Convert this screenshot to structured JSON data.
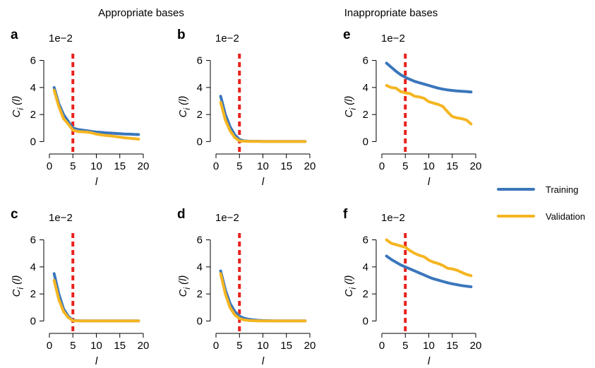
{
  "figure": {
    "group_titles": [
      "Appropriate bases",
      "Inappropriate bases"
    ],
    "colors": {
      "training": "#3a76bb",
      "validation": "#f5b522",
      "threshold": "#e8211d"
    },
    "legend": {
      "placement": "right",
      "entries": [
        "Training",
        "Validation"
      ]
    }
  },
  "chart_data": [
    {
      "panel": "a",
      "type": "line",
      "multiplier": "1e−2",
      "xlabel": "l",
      "ylabel": "C",
      "ylabel_sub": "i",
      "ylabel_arg": "(l)",
      "xlim": [
        0,
        20
      ],
      "ylim": [
        -0.5,
        6.5
      ],
      "xticks": [
        0,
        5,
        10,
        15,
        20
      ],
      "yticks": [
        0,
        2,
        4,
        6
      ],
      "threshold_x": 5,
      "series": [
        {
          "name": "Training",
          "x": [
            1,
            2,
            3,
            4,
            5,
            6,
            7,
            8,
            9,
            10,
            11,
            12,
            13,
            14,
            15,
            16,
            17,
            18,
            19
          ],
          "y": [
            4.0,
            2.8,
            2.0,
            1.5,
            1.0,
            0.9,
            0.85,
            0.8,
            0.75,
            0.7,
            0.68,
            0.65,
            0.63,
            0.6,
            0.58,
            0.56,
            0.55,
            0.53,
            0.52
          ]
        },
        {
          "name": "Validation",
          "x": [
            1,
            2,
            3,
            4,
            5,
            6,
            7,
            8,
            9,
            10,
            11,
            12,
            13,
            14,
            15,
            16,
            17,
            18,
            19
          ],
          "y": [
            3.8,
            2.6,
            1.7,
            1.3,
            0.85,
            0.75,
            0.72,
            0.7,
            0.65,
            0.55,
            0.5,
            0.45,
            0.42,
            0.38,
            0.33,
            0.28,
            0.25,
            0.22,
            0.18
          ]
        }
      ]
    },
    {
      "panel": "b",
      "type": "line",
      "multiplier": "1e−2",
      "xlabel": "l",
      "ylabel": "C",
      "ylabel_sub": "i",
      "ylabel_arg": "(l)",
      "xlim": [
        0,
        20
      ],
      "ylim": [
        -0.5,
        6.5
      ],
      "xticks": [
        0,
        5,
        10,
        15,
        20
      ],
      "yticks": [
        0,
        2,
        4,
        6
      ],
      "threshold_x": 5,
      "series": [
        {
          "name": "Training",
          "x": [
            1,
            2,
            3,
            4,
            5,
            6,
            7,
            8,
            9,
            10,
            11,
            12,
            13,
            14,
            15,
            16,
            17,
            18,
            19
          ],
          "y": [
            3.35,
            2.0,
            1.1,
            0.5,
            0.15,
            0.05,
            0.03,
            0.02,
            0.02,
            0.01,
            0.01,
            0.01,
            0.01,
            0.01,
            0.01,
            0.01,
            0.01,
            0.01,
            0.01
          ]
        },
        {
          "name": "Validation",
          "x": [
            1,
            2,
            3,
            4,
            5,
            6,
            7,
            8,
            9,
            10,
            11,
            12,
            13,
            14,
            15,
            16,
            17,
            18,
            19
          ],
          "y": [
            2.9,
            1.6,
            0.8,
            0.3,
            0.05,
            0.02,
            0.01,
            0.01,
            0.01,
            0.0,
            0.0,
            0.0,
            0.0,
            0.0,
            0.0,
            0.0,
            0.0,
            0.0,
            0.0
          ]
        }
      ]
    },
    {
      "panel": "c",
      "type": "line",
      "multiplier": "1e−2",
      "xlabel": "l",
      "ylabel": "C",
      "ylabel_sub": "i",
      "ylabel_arg": "(l)",
      "xlim": [
        0,
        20
      ],
      "ylim": [
        -0.5,
        6.5
      ],
      "xticks": [
        0,
        5,
        10,
        15,
        20
      ],
      "yticks": [
        0,
        2,
        4,
        6
      ],
      "threshold_x": 5,
      "series": [
        {
          "name": "Training",
          "x": [
            1,
            2,
            3,
            4,
            5,
            6,
            7,
            8,
            9,
            10,
            11,
            12,
            13,
            14,
            15,
            16,
            17,
            18,
            19
          ],
          "y": [
            3.5,
            2.0,
            0.9,
            0.35,
            0.05,
            0.02,
            0.01,
            0.01,
            0.01,
            0.01,
            0.01,
            0.01,
            0.01,
            0.01,
            0.01,
            0.01,
            0.01,
            0.01,
            0.01
          ]
        },
        {
          "name": "Validation",
          "x": [
            1,
            2,
            3,
            4,
            5,
            6,
            7,
            8,
            9,
            10,
            11,
            12,
            13,
            14,
            15,
            16,
            17,
            18,
            19
          ],
          "y": [
            3.0,
            1.6,
            0.7,
            0.25,
            0.02,
            0.01,
            0.0,
            0.0,
            0.0,
            0.0,
            0.0,
            0.0,
            0.0,
            0.0,
            0.0,
            0.0,
            0.0,
            0.0,
            0.0
          ]
        }
      ]
    },
    {
      "panel": "d",
      "type": "line",
      "multiplier": "1e−2",
      "xlabel": "l",
      "ylabel": "C",
      "ylabel_sub": "i",
      "ylabel_arg": "(l)",
      "xlim": [
        0,
        20
      ],
      "ylim": [
        -0.5,
        6.5
      ],
      "xticks": [
        0,
        5,
        10,
        15,
        20
      ],
      "yticks": [
        0,
        2,
        4,
        6
      ],
      "threshold_x": 5,
      "series": [
        {
          "name": "Training",
          "x": [
            1,
            2,
            3,
            4,
            5,
            6,
            7,
            8,
            9,
            10,
            11,
            12,
            13,
            14,
            15,
            16,
            17,
            18,
            19
          ],
          "y": [
            3.7,
            2.3,
            1.3,
            0.7,
            0.35,
            0.2,
            0.12,
            0.08,
            0.05,
            0.03,
            0.02,
            0.01,
            0.01,
            0.01,
            0.01,
            0.01,
            0.01,
            0.01,
            0.01
          ]
        },
        {
          "name": "Validation",
          "x": [
            1,
            2,
            3,
            4,
            5,
            6,
            7,
            8,
            9,
            10,
            11,
            12,
            13,
            14,
            15,
            16,
            17,
            18,
            19
          ],
          "y": [
            3.5,
            2.0,
            1.0,
            0.45,
            0.18,
            0.08,
            0.04,
            0.02,
            0.01,
            0.0,
            0.0,
            0.0,
            0.0,
            0.0,
            0.0,
            0.0,
            0.0,
            0.0,
            0.0
          ]
        }
      ]
    },
    {
      "panel": "e",
      "type": "line",
      "multiplier": "1e−2",
      "xlabel": "l",
      "ylabel": "C",
      "ylabel_sub": "i",
      "ylabel_arg": "(l)",
      "xlim": [
        0,
        20
      ],
      "ylim": [
        -0.5,
        6.5
      ],
      "xticks": [
        0,
        5,
        10,
        15,
        20
      ],
      "yticks": [
        0,
        2,
        4,
        6
      ],
      "threshold_x": 5,
      "series": [
        {
          "name": "Training",
          "x": [
            1,
            2,
            3,
            4,
            5,
            6,
            7,
            8,
            9,
            10,
            11,
            12,
            13,
            14,
            15,
            16,
            17,
            18,
            19
          ],
          "y": [
            5.8,
            5.5,
            5.2,
            4.95,
            4.75,
            4.6,
            4.45,
            4.35,
            4.25,
            4.15,
            4.05,
            3.95,
            3.88,
            3.82,
            3.78,
            3.74,
            3.72,
            3.7,
            3.67
          ]
        },
        {
          "name": "Validation",
          "x": [
            1,
            2,
            3,
            4,
            5,
            6,
            7,
            8,
            9,
            10,
            11,
            12,
            13,
            14,
            15,
            16,
            17,
            18,
            19
          ],
          "y": [
            4.15,
            4.0,
            3.95,
            3.7,
            3.6,
            3.55,
            3.35,
            3.3,
            3.2,
            2.95,
            2.85,
            2.75,
            2.6,
            2.2,
            1.85,
            1.75,
            1.7,
            1.6,
            1.3
          ]
        }
      ]
    },
    {
      "panel": "f",
      "type": "line",
      "multiplier": "1e−2",
      "xlabel": "l",
      "ylabel": "C",
      "ylabel_sub": "i",
      "ylabel_arg": "(l)",
      "xlim": [
        0,
        20
      ],
      "ylim": [
        -0.5,
        6.5
      ],
      "xticks": [
        0,
        5,
        10,
        15,
        20
      ],
      "yticks": [
        0,
        2,
        4,
        6
      ],
      "threshold_x": 5,
      "series": [
        {
          "name": "Training",
          "x": [
            1,
            2,
            3,
            4,
            5,
            6,
            7,
            8,
            9,
            10,
            11,
            12,
            13,
            14,
            15,
            16,
            17,
            18,
            19
          ],
          "y": [
            4.8,
            4.55,
            4.35,
            4.15,
            4.0,
            3.85,
            3.7,
            3.55,
            3.4,
            3.25,
            3.12,
            3.02,
            2.92,
            2.83,
            2.75,
            2.68,
            2.62,
            2.57,
            2.53
          ]
        },
        {
          "name": "Validation",
          "x": [
            1,
            2,
            3,
            4,
            5,
            6,
            7,
            8,
            9,
            10,
            11,
            12,
            13,
            14,
            15,
            16,
            17,
            18,
            19
          ],
          "y": [
            6.0,
            5.75,
            5.65,
            5.55,
            5.45,
            5.2,
            5.0,
            4.85,
            4.75,
            4.5,
            4.35,
            4.25,
            4.1,
            3.9,
            3.85,
            3.75,
            3.6,
            3.45,
            3.35
          ]
        }
      ]
    }
  ]
}
